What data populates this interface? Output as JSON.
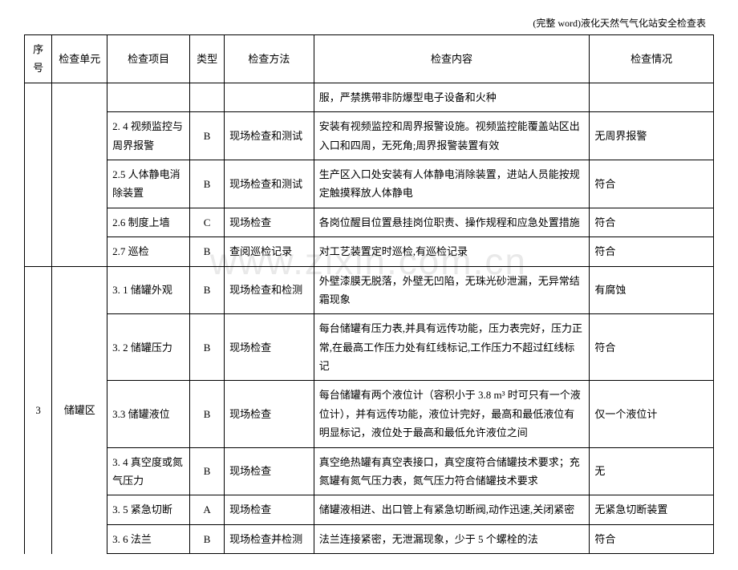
{
  "doc_header": "(完整 word)液化天然气气化站安全检查表",
  "watermark": "www.zixin.com.cn",
  "columns": {
    "seq": "序号",
    "unit": "检查单元",
    "item": "检查项目",
    "type": "类型",
    "method": "检查方法",
    "content": "检查内容",
    "status": "检查情况"
  },
  "rows": [
    {
      "seq": "",
      "unit": "",
      "item": "",
      "type": "",
      "method": "",
      "content": "服，严禁携带非防爆型电子设备和火种",
      "status": ""
    },
    {
      "item": "2. 4 视频监控与周界报警",
      "type": "B",
      "method": "现场检查和测试",
      "content": "安装有视频监控和周界报警设施。视频监控能覆盖站区出入口和四周，无死角;周界报警装置有效",
      "status": "无周界报警"
    },
    {
      "item": "2.5 人体静电消除装置",
      "type": "B",
      "method": "现场检查和测试",
      "content": "生产区入口处安装有人体静电消除装置，进站人员能按规定触摸释放人体静电",
      "status": "符合"
    },
    {
      "item": "2.6 制度上墙",
      "type": "C",
      "method": "现场检查",
      "content": "各岗位醒目位置悬挂岗位职责、操作规程和应急处置措施",
      "status": "符合"
    },
    {
      "item": "2.7 巡检",
      "type": "B",
      "method": "查阅巡检记录",
      "content": "对工艺装置定时巡检,有巡检记录",
      "status": "符合"
    },
    {
      "seq": "3",
      "unit": "储罐区",
      "item": "3. 1 储罐外观",
      "type": "B",
      "method": "现场检查和检测",
      "content": "外壁漆膜无脱落，外壁无凹陷，无珠光砂泄漏，无异常结霜现象",
      "status": "有腐蚀"
    },
    {
      "item": "3. 2 储罐压力",
      "type": "B",
      "method": "现场检查",
      "content": "每台储罐有压力表,并具有远传功能，压力表完好，压力正常,在最高工作压力处有红线标记,工作压力不超过红线标记",
      "status": "符合"
    },
    {
      "item": "3.3 储罐液位",
      "type": "B",
      "method": "现场检查",
      "content": "每台储罐有两个液位计（容积小于 3.8 m³ 时可只有一个液位计），并有远传功能，液位计完好，最高和最低液位有明显标记，液位处于最高和最低允许液位之间",
      "status": "仅一个液位计"
    },
    {
      "item": "3. 4 真空度或氮气压力",
      "type": "B",
      "method": "现场检查",
      "content": "真空绝热罐有真空表接口，真空度符合储罐技术要求；充氮罐有氮气压力表，氮气压力符合储罐技术要求",
      "status": "无"
    },
    {
      "item": "3. 5 紧急切断",
      "type": "A",
      "method": "现场检查",
      "content": "储罐液相进、出口管上有紧急切断阀,动作迅速,关闭紧密",
      "status": "无紧急切断装置"
    },
    {
      "item": "3. 6 法兰",
      "type": "B",
      "method": "现场检查并检测",
      "content": "法兰连接紧密，无泄漏现象，少于 5 个螺栓的法",
      "status": "符合"
    }
  ]
}
